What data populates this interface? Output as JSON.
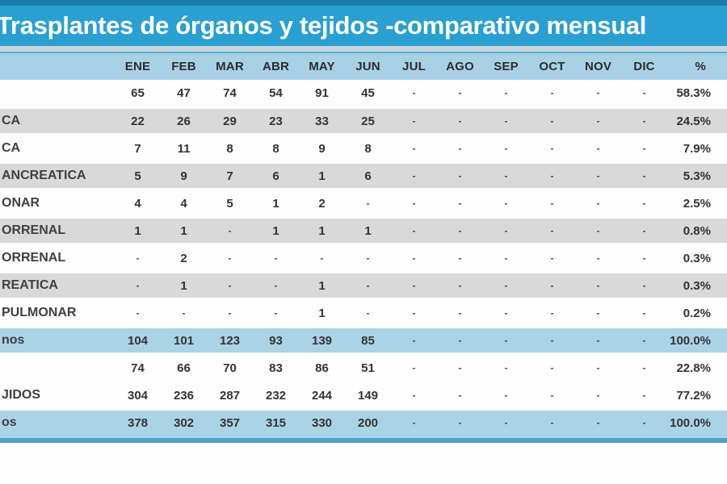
{
  "colors": {
    "top_strip": "#1b7aad",
    "title_bar": "#29a0d1",
    "gap": "#ccd3da",
    "header_bg": "#a9d1e5",
    "header_border": "#49b7dc",
    "stripe_gray": "#d9d9d9",
    "total_bg": "#abd3e6",
    "bottom_strip": "#4f9fc8",
    "title_text": "#ffffff",
    "cell_text": "#333333"
  },
  "chart_data": {
    "type": "table",
    "title": "Trasplantes de órganos y tejidos -comparativo mensual",
    "columns": [
      "ENE",
      "FEB",
      "MAR",
      "ABR",
      "MAY",
      "JUN",
      "JUL",
      "AGO",
      "SEP",
      "OCT",
      "NOV",
      "DIC",
      "%"
    ],
    "note_visible_labels_truncated_at_left_edge": true,
    "rows": [
      {
        "label": "",
        "variant": "white",
        "cells": [
          "65",
          "47",
          "74",
          "54",
          "91",
          "45",
          "-",
          "-",
          "-",
          "-",
          "-",
          "-",
          "58.3%"
        ]
      },
      {
        "label": "CA",
        "variant": "gray",
        "cells": [
          "22",
          "26",
          "29",
          "23",
          "33",
          "25",
          "-",
          "-",
          "-",
          "-",
          "-",
          "-",
          "24.5%"
        ]
      },
      {
        "label": "CA",
        "variant": "white",
        "cells": [
          "7",
          "11",
          "8",
          "8",
          "9",
          "8",
          "-",
          "-",
          "-",
          "-",
          "-",
          "-",
          "7.9%"
        ]
      },
      {
        "label": "ANCREATICA",
        "variant": "gray",
        "cells": [
          "5",
          "9",
          "7",
          "6",
          "1",
          "6",
          "-",
          "-",
          "-",
          "-",
          "-",
          "-",
          "5.3%"
        ]
      },
      {
        "label": "ONAR",
        "variant": "white",
        "cells": [
          "4",
          "4",
          "5",
          "1",
          "2",
          "-",
          "-",
          "-",
          "-",
          "-",
          "-",
          "-",
          "2.5%"
        ]
      },
      {
        "label": "ORRENAL",
        "variant": "gray",
        "cells": [
          "1",
          "1",
          "-",
          "1",
          "1",
          "1",
          "-",
          "-",
          "-",
          "-",
          "-",
          "-",
          "0.8%"
        ]
      },
      {
        "label": "ORRENAL",
        "variant": "white",
        "cells": [
          "-",
          "2",
          "-",
          "-",
          "-",
          "-",
          "-",
          "-",
          "-",
          "-",
          "-",
          "-",
          "0.3%"
        ]
      },
      {
        "label": "REATICA",
        "variant": "gray",
        "cells": [
          "-",
          "1",
          "-",
          "-",
          "1",
          "-",
          "-",
          "-",
          "-",
          "-",
          "-",
          "-",
          "0.3%"
        ]
      },
      {
        "label": "PULMONAR",
        "variant": "white",
        "cells": [
          "-",
          "-",
          "-",
          "-",
          "1",
          "-",
          "-",
          "-",
          "-",
          "-",
          "-",
          "-",
          "0.2%"
        ]
      },
      {
        "label": "nos",
        "variant": "blue",
        "cells": [
          "104",
          "101",
          "123",
          "93",
          "139",
          "85",
          "-",
          "-",
          "-",
          "-",
          "-",
          "-",
          "100.0%"
        ]
      },
      {
        "label": "",
        "variant": "white",
        "cells": [
          "74",
          "66",
          "70",
          "83",
          "86",
          "51",
          "-",
          "-",
          "-",
          "-",
          "-",
          "-",
          "22.8%"
        ]
      },
      {
        "label": "JIDOS",
        "variant": "white",
        "cells": [
          "304",
          "236",
          "287",
          "232",
          "244",
          "149",
          "-",
          "-",
          "-",
          "-",
          "-",
          "-",
          "77.2%"
        ]
      },
      {
        "label": "os",
        "variant": "blue",
        "cells": [
          "378",
          "302",
          "357",
          "315",
          "330",
          "200",
          "-",
          "-",
          "-",
          "-",
          "-",
          "-",
          "100.0%"
        ]
      }
    ]
  }
}
